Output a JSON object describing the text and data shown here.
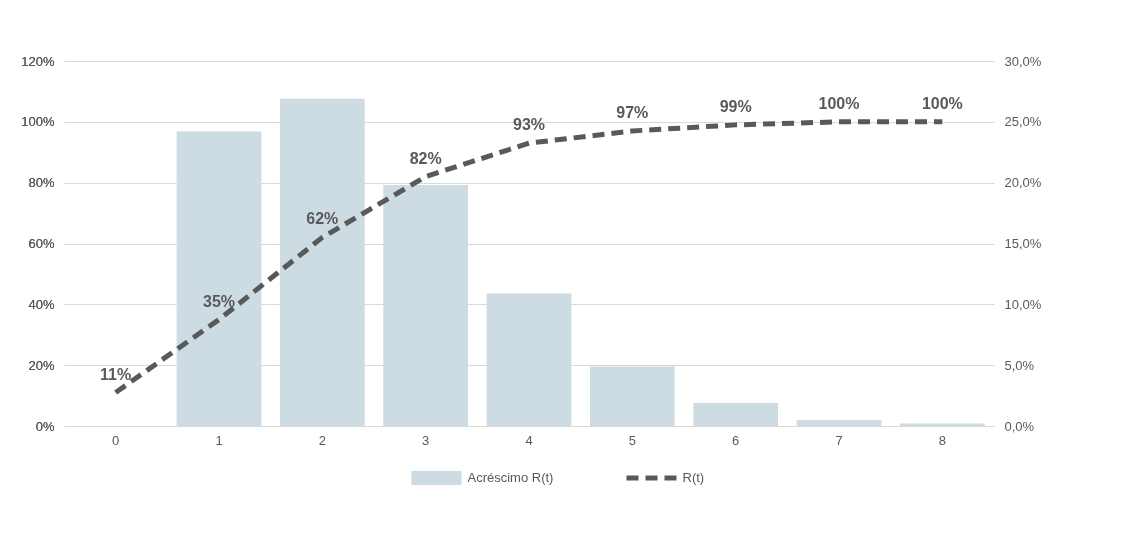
{
  "chart_data": {
    "type": "bar",
    "categories": [
      "0",
      "1",
      "2",
      "3",
      "4",
      "5",
      "6",
      "7",
      "8"
    ],
    "series": [
      {
        "name": "Acréscimo R(t)",
        "axis": "y2",
        "color": "#ccdce2",
        "values": [
          null,
          24.2,
          26.9,
          19.8,
          10.9,
          4.9,
          1.9,
          0.5,
          0.2
        ]
      },
      {
        "name": "R(t)",
        "type": "line",
        "color": "#595959",
        "line_style": "dashed",
        "values": [
          11,
          35,
          62,
          82,
          93,
          97,
          99,
          100,
          100
        ],
        "value_labels": [
          "11%",
          "35%",
          "62%",
          "82%",
          "93%",
          "97%",
          "99%",
          "100%",
          "100%"
        ]
      }
    ],
    "ylim": [
      0,
      120
    ],
    "yticks": [
      {
        "value": 0,
        "label": "0%"
      },
      {
        "value": 20,
        "label": "20%"
      },
      {
        "value": 40,
        "label": "40%"
      },
      {
        "value": 60,
        "label": "60%"
      },
      {
        "value": 80,
        "label": "80%"
      },
      {
        "value": 100,
        "label": "100%"
      },
      {
        "value": 120,
        "label": "120%"
      }
    ],
    "y2lim": [
      0,
      30
    ],
    "y2ticks": [
      {
        "value": 0,
        "label": "0,0%"
      },
      {
        "value": 5,
        "label": "5,0%"
      },
      {
        "value": 10,
        "label": "10,0%"
      },
      {
        "value": 15,
        "label": "15,0%"
      },
      {
        "value": 20,
        "label": "20,0%"
      },
      {
        "value": 25,
        "label": "25,0%"
      },
      {
        "value": 30,
        "label": "30,0%"
      }
    ],
    "grid": "y",
    "legend": "bottom"
  }
}
